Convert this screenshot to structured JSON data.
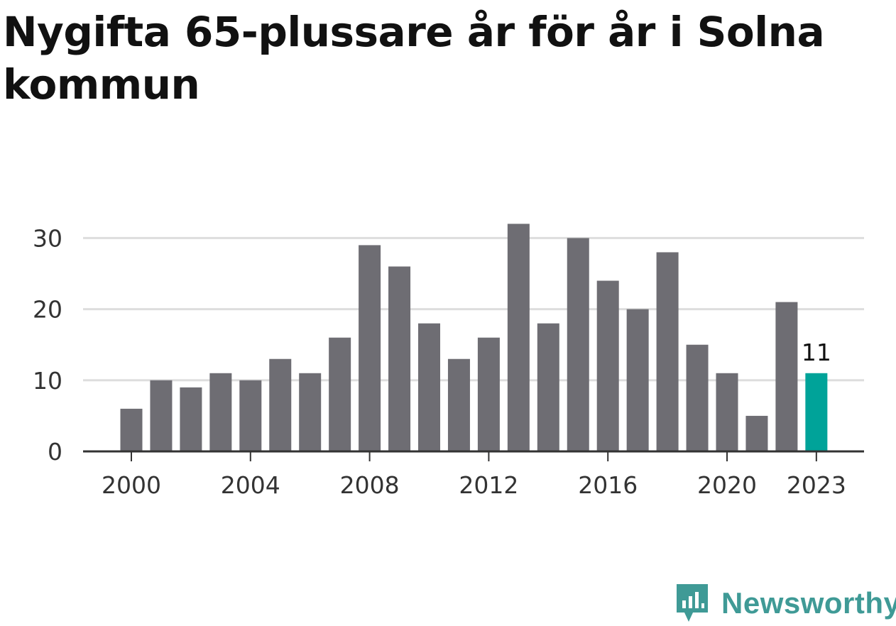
{
  "chart_data": {
    "type": "bar",
    "title": "Nygifta 65-plussare år för år i Solna kommun",
    "xlabel": "",
    "ylabel": "",
    "categories": [
      "2000",
      "2001",
      "2002",
      "2003",
      "2004",
      "2005",
      "2006",
      "2007",
      "2008",
      "2009",
      "2010",
      "2011",
      "2012",
      "2013",
      "2014",
      "2015",
      "2016",
      "2017",
      "2018",
      "2019",
      "2020",
      "2021",
      "2022",
      "2023"
    ],
    "values": [
      6,
      10,
      9,
      11,
      10,
      13,
      11,
      16,
      29,
      26,
      18,
      13,
      16,
      32,
      18,
      30,
      24,
      20,
      28,
      15,
      11,
      5,
      21,
      11
    ],
    "ylim": [
      0,
      32
    ],
    "yticks": [
      0,
      10,
      20,
      30
    ],
    "xtick_labels": [
      "2000",
      "2004",
      "2008",
      "2012",
      "2016",
      "2020",
      "2023"
    ],
    "highlight": {
      "category": "2023",
      "label": "11"
    },
    "grid": true,
    "colors": {
      "bar": "#6e6d73",
      "highlight": "#00a399",
      "grid": "#dddddd",
      "axis": "#333333"
    }
  },
  "brand": {
    "name": "Newsworthy",
    "icon": "newsworthy-logo-icon",
    "color": "#3f9a96"
  }
}
